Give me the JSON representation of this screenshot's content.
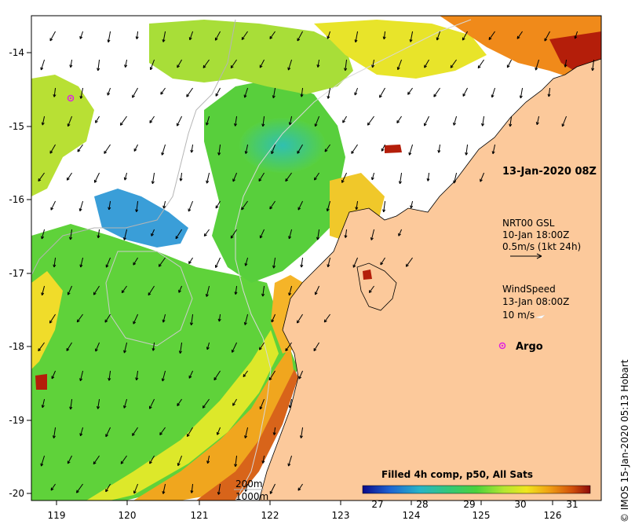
{
  "map": {
    "x_ticks": [
      "119",
      "120",
      "121",
      "122",
      "123",
      "124",
      "125",
      "126"
    ],
    "y_ticks": [
      "-14",
      "-15",
      "-16",
      "-17",
      "-18",
      "-19",
      "-20"
    ],
    "timestamp": "13-Jan-2020 08Z",
    "credit": "© IMOS 15-Jan-2020 05:13 Hobart"
  },
  "legend": {
    "current": {
      "line1": "NRT00 GSL",
      "line2": "10-Jan 18:00Z",
      "line3": "0.5m/s (1kt 24h)"
    },
    "wind": {
      "line1": "WindSpeed",
      "line2": "13-Jan 08:00Z",
      "line3": "10 m/s"
    },
    "argo": {
      "label": "Argo",
      "color": "#e020e0"
    },
    "depth": {
      "line1": "200m",
      "line2": "1000m"
    }
  },
  "colorbar": {
    "title": "Filled 4h comp, p50, All Sats",
    "ticks": [
      "27",
      "28",
      "29",
      "30",
      "31"
    ]
  },
  "colors": {
    "land": "#fcc99b",
    "coast": "#000000",
    "isobath": "#b5b5b5"
  }
}
